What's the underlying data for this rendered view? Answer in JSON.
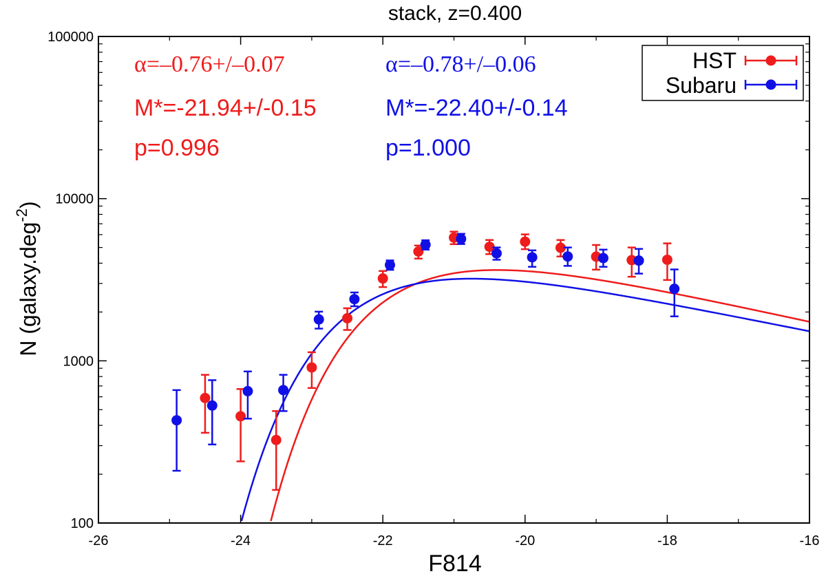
{
  "chart_data": {
    "type": "scatter",
    "title": "stack, z=0.400",
    "xlabel": "F814",
    "ylabel_main": "N (galaxy.deg",
    "ylabel_sup": "-2",
    "ylabel_close": ")",
    "xlim": [
      -26,
      -16
    ],
    "ylim": [
      100,
      100000
    ],
    "yscale": "log",
    "x_ticks": [
      -26,
      -24,
      -22,
      -20,
      -18,
      -16
    ],
    "x_tick_labels": [
      "-26",
      "-24",
      "-22",
      "-20",
      "-18",
      "-16"
    ],
    "y_ticks": [
      100,
      1000,
      10000,
      100000
    ],
    "y_tick_labels": [
      "100",
      "1000",
      "10000",
      "100000"
    ],
    "legend_position": "top-right",
    "series": [
      {
        "name": "HST",
        "color": "#ee1c1c",
        "points": [
          {
            "x": -24.5,
            "y": 590,
            "lo": 360,
            "hi": 820
          },
          {
            "x": -24.0,
            "y": 455,
            "lo": 240,
            "hi": 670
          },
          {
            "x": -23.5,
            "y": 325,
            "lo": 160,
            "hi": 490
          },
          {
            "x": -23.0,
            "y": 910,
            "lo": 680,
            "hi": 1130
          },
          {
            "x": -22.5,
            "y": 1830,
            "lo": 1550,
            "hi": 2110
          },
          {
            "x": -22.0,
            "y": 3220,
            "lo": 2850,
            "hi": 3580
          },
          {
            "x": -21.5,
            "y": 4720,
            "lo": 4270,
            "hi": 5140
          },
          {
            "x": -21.0,
            "y": 5750,
            "lo": 5240,
            "hi": 6260
          },
          {
            "x": -20.5,
            "y": 5050,
            "lo": 4550,
            "hi": 5560
          },
          {
            "x": -20.0,
            "y": 5430,
            "lo": 4880,
            "hi": 6020
          },
          {
            "x": -19.5,
            "y": 4980,
            "lo": 4400,
            "hi": 5560
          },
          {
            "x": -19.0,
            "y": 4390,
            "lo": 3650,
            "hi": 5180
          },
          {
            "x": -18.5,
            "y": 4180,
            "lo": 3300,
            "hi": 5000
          },
          {
            "x": -18.0,
            "y": 4200,
            "lo": 3150,
            "hi": 5300
          }
        ],
        "fit": {
          "alpha": -0.76,
          "mstar": -21.94,
          "phi": 6500
        },
        "alpha_text": "α=–0.76+/–0.07",
        "mstar_text": "M*=-21.94+/-0.15",
        "p_text": "p=0.996"
      },
      {
        "name": "Subaru",
        "color": "#1010e6",
        "points": [
          {
            "x": -24.9,
            "y": 430,
            "lo": 210,
            "hi": 660
          },
          {
            "x": -24.4,
            "y": 530,
            "lo": 305,
            "hi": 760
          },
          {
            "x": -23.9,
            "y": 650,
            "lo": 440,
            "hi": 860
          },
          {
            "x": -23.4,
            "y": 660,
            "lo": 490,
            "hi": 820
          },
          {
            "x": -22.9,
            "y": 1800,
            "lo": 1580,
            "hi": 2010
          },
          {
            "x": -22.4,
            "y": 2400,
            "lo": 2170,
            "hi": 2640
          },
          {
            "x": -21.9,
            "y": 3900,
            "lo": 3640,
            "hi": 4160
          },
          {
            "x": -21.4,
            "y": 5200,
            "lo": 4850,
            "hi": 5540
          },
          {
            "x": -20.9,
            "y": 5650,
            "lo": 5250,
            "hi": 6070
          },
          {
            "x": -20.4,
            "y": 4600,
            "lo": 4200,
            "hi": 5000
          },
          {
            "x": -19.9,
            "y": 4350,
            "lo": 3800,
            "hi": 4800
          },
          {
            "x": -19.4,
            "y": 4400,
            "lo": 3850,
            "hi": 5000
          },
          {
            "x": -18.9,
            "y": 4300,
            "lo": 3800,
            "hi": 4850
          },
          {
            "x": -18.4,
            "y": 4150,
            "lo": 3450,
            "hi": 4900
          },
          {
            "x": -17.9,
            "y": 2780,
            "lo": 1880,
            "hi": 3660
          }
        ],
        "fit": {
          "alpha": -0.78,
          "mstar": -22.4,
          "phi": 5580
        },
        "alpha_text": "α=–0.78+/–0.06",
        "mstar_text": "M*=-22.40+/-0.14",
        "p_text": "p=1.000"
      }
    ]
  }
}
